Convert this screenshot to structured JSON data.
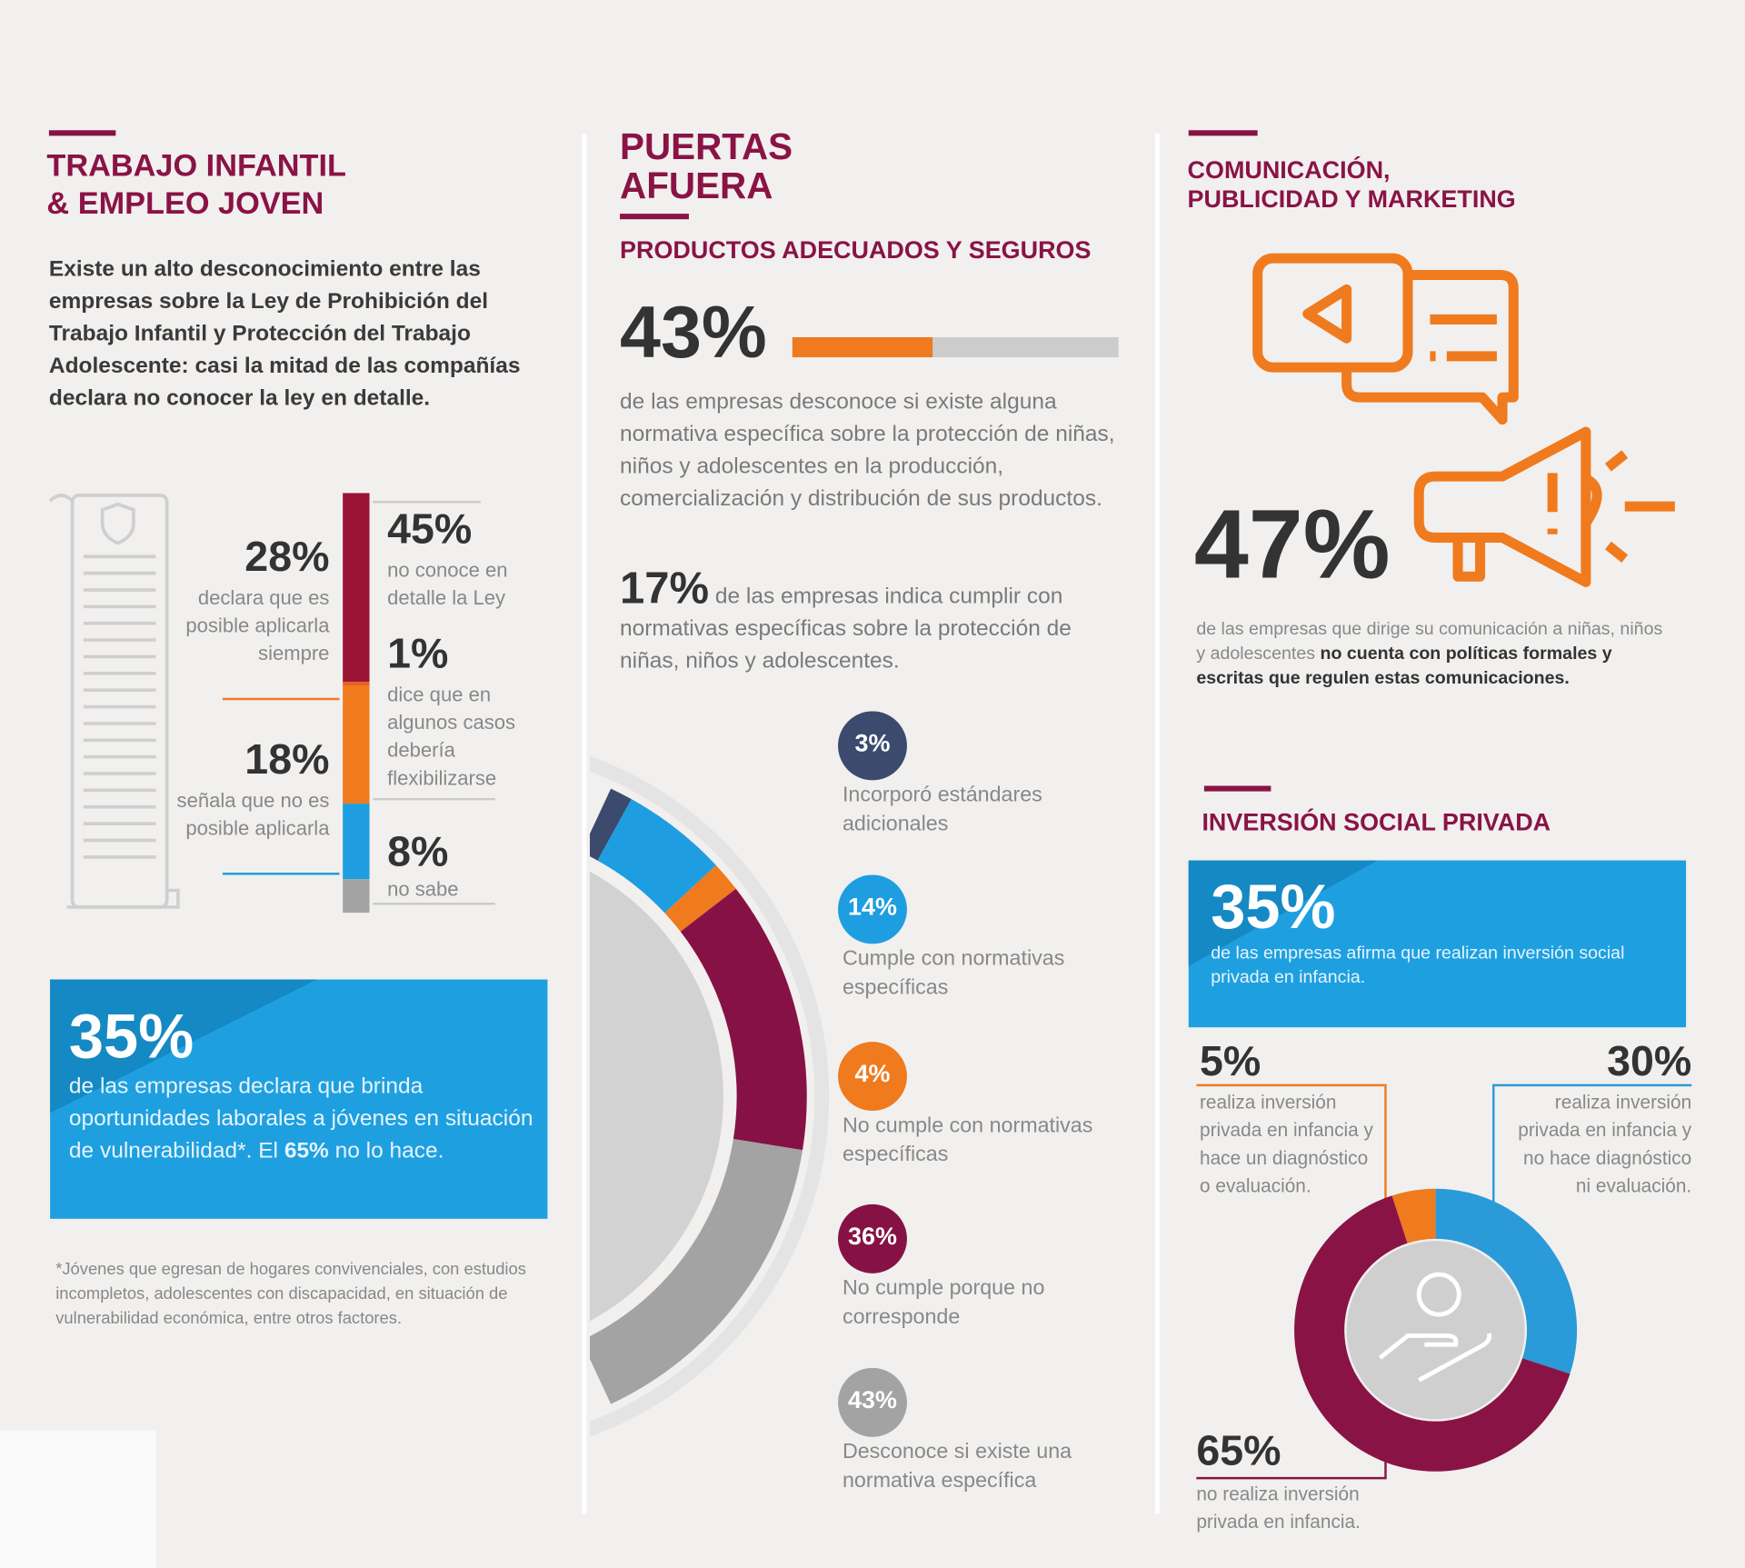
{
  "left": {
    "title": [
      "TRABAJO INFANTIL",
      "& EMPLEO JOVEN"
    ],
    "intro": "Existe un alto desconocimiento entre las empresas sobre la Ley de Prohibición del Trabajo Infantil y Protección del Trabajo Adolescente: casi la mitad de las compañías declara no conocer la ley en detalle.",
    "law_chart": {
      "items": [
        {
          "value": 45,
          "value_label": "45%",
          "text": "no conoce en detalle la Ley",
          "color": "#9b1436"
        },
        {
          "value": 1,
          "value_label": "1%",
          "text": "dice que en algunos casos debería flexibilizarse",
          "color": "#e8601c"
        },
        {
          "value": 28,
          "value_label": "28%",
          "text": "declara que es posible aplicarla siempre",
          "color": "#f07a1e"
        },
        {
          "value": 18,
          "value_label": "18%",
          "text": "señala que no es posible aplicarla",
          "color": "#1e9ee0"
        },
        {
          "value": 8,
          "value_label": "8%",
          "text": "no sabe",
          "color": "#a3a3a3"
        }
      ]
    },
    "callout": {
      "value_label": "35%",
      "text_parts": [
        "de las empresas declara que brinda oportunidades laborales a jóvenes en situación de vulnerabilidad*. El ",
        "65%",
        " no lo hace."
      ]
    },
    "footnote": "*Jóvenes que egresan de hogares convivenciales, con estudios incompletos, adolescentes con discapacidad, en situación de vulnerabilidad económica, entre otros factores."
  },
  "middle": {
    "title": [
      "PUERTAS",
      "AFUERA"
    ],
    "subtitle": "PRODUCTOS ADECUADOS Y SEGUROS",
    "stat1": {
      "value": 43,
      "value_label": "43%",
      "text": "de las empresas desconoce si existe alguna normativa específica sobre la protección de niñas, niños y adolescentes en la producción, comercialización y distribución de sus productos."
    },
    "stat2": {
      "value_label": "17%",
      "text": "de las empresas indica cumplir con normativas específicas sobre la protección de niñas, niños y adolescentes."
    },
    "donut": {
      "items": [
        {
          "value": 3,
          "value_label": "3%",
          "text": "Incorporó estándares adicionales",
          "color": "#3c4a6e"
        },
        {
          "value": 14,
          "value_label": "14%",
          "text": "Cumple con normativas específicas",
          "color": "#1e9ee0"
        },
        {
          "value": 4,
          "value_label": "4%",
          "text": "No cumple con normativas específicas",
          "color": "#f07a1e"
        },
        {
          "value": 36,
          "value_label": "36%",
          "text": "No cumple porque no corresponde",
          "color": "#861245"
        },
        {
          "value": 43,
          "value_label": "43%",
          "text": "Desconoce si existe una normativa específica",
          "color": "#a3a3a3"
        }
      ]
    }
  },
  "right": {
    "title": [
      "COMUNICACIÓN,",
      "PUBLICIDAD Y MARKETING"
    ],
    "stat": {
      "value_label": "47%",
      "text_parts": [
        "de las empresas que dirige su comunicación a niñas, niños y adolescentes ",
        "no cuenta con políticas formales y escritas que regulen estas comunicaciones."
      ]
    },
    "investment": {
      "title": "INVERSIÓN SOCIAL PRIVADA",
      "callout": {
        "value_label": "35%",
        "text": "de las empresas afirma que realizan inversión social privada en infancia."
      },
      "donut": {
        "items": [
          {
            "value": 5,
            "value_label": "5%",
            "text": "realiza inversión privada en infancia y hace un diagnóstico o evaluación.",
            "color": "#f07a1e"
          },
          {
            "value": 30,
            "value_label": "30%",
            "text": "realiza inversión privada en infancia y no hace diagnóstico ni evaluación.",
            "color": "#2a9ad8"
          },
          {
            "value": 65,
            "value_label": "65%",
            "text": "no realiza inversión privada en infancia.",
            "color": "#8a1346"
          }
        ]
      }
    }
  }
}
